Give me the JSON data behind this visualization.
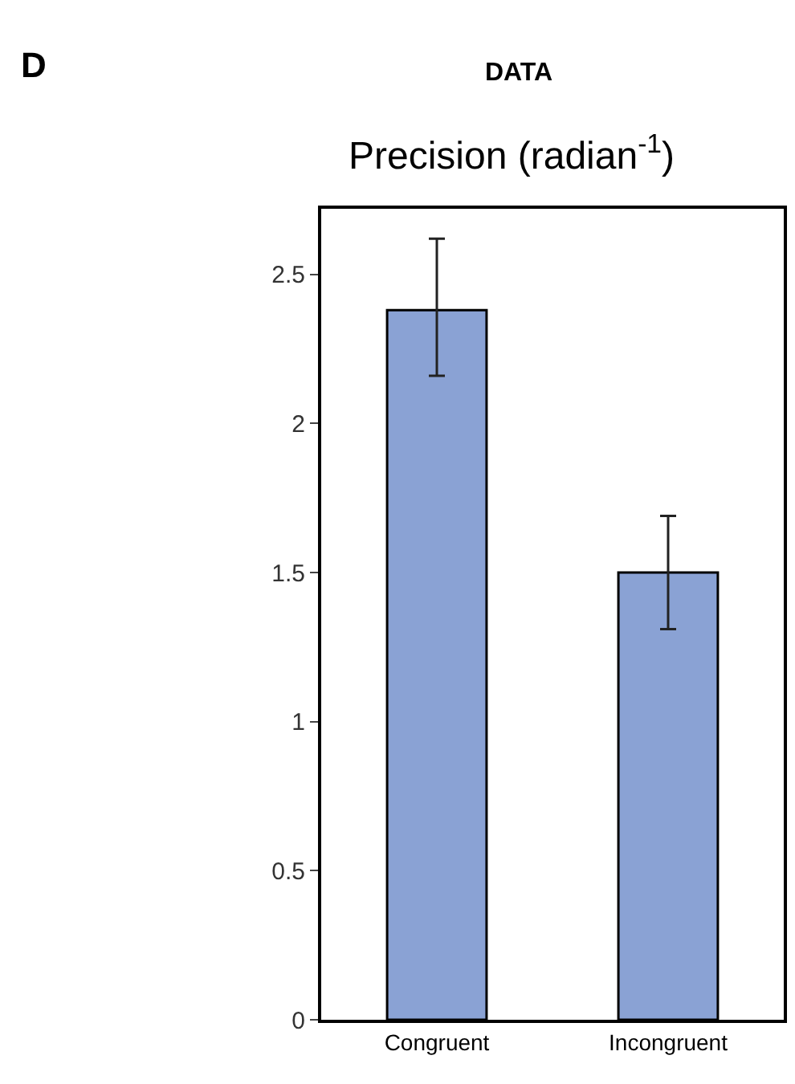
{
  "chart_data": {
    "type": "bar",
    "title": "DATA",
    "subtitle": "Precision (radian$^{-1}$)",
    "annotations": [
      "D"
    ],
    "categories": [
      "Congruent",
      "Incongruent"
    ],
    "series": [
      {
        "color": "#8aa2d4",
        "values": [
          2.38,
          1.5
        ],
        "errors": [
          [
            2.16,
            2.62
          ],
          [
            1.31,
            1.69
          ]
        ]
      }
    ],
    "ylim": [
      0,
      2.72
    ],
    "yticks": [
      0,
      0.5,
      1,
      1.5,
      2,
      2.5
    ],
    "legend": false
  }
}
